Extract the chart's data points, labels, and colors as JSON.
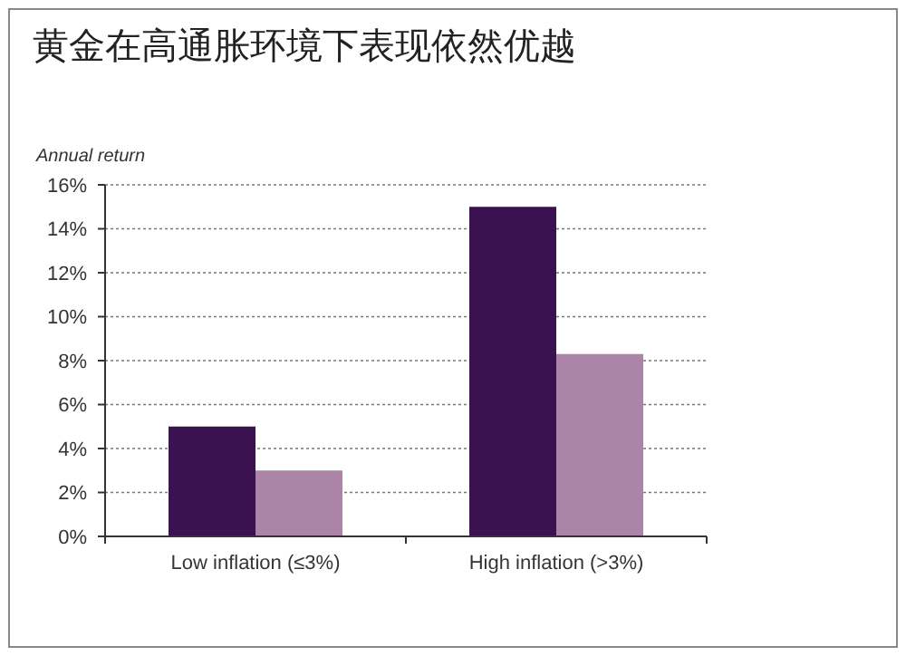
{
  "chart_data": {
    "type": "bar",
    "title": "黄金在高通胀环境下表现依然优越",
    "ylabel": "Annual return",
    "categories": [
      "Low inflation (≤3%)",
      "High inflation (>3%)"
    ],
    "series": [
      {
        "color": "#3a1250",
        "values": [
          5,
          15
        ]
      },
      {
        "color": "#ac84a8",
        "values": [
          3,
          8.3
        ]
      }
    ],
    "ylim": [
      0,
      16
    ],
    "yticks": [
      {
        "value": 0,
        "label": "0%"
      },
      {
        "value": 2,
        "label": "2%"
      },
      {
        "value": 4,
        "label": "4%"
      },
      {
        "value": 6,
        "label": "6%"
      },
      {
        "value": 8,
        "label": "8%"
      },
      {
        "value": 10,
        "label": "10%"
      },
      {
        "value": 12,
        "label": "12%"
      },
      {
        "value": 14,
        "label": "14%"
      },
      {
        "value": 16,
        "label": "16%"
      }
    ],
    "grid": "y"
  }
}
